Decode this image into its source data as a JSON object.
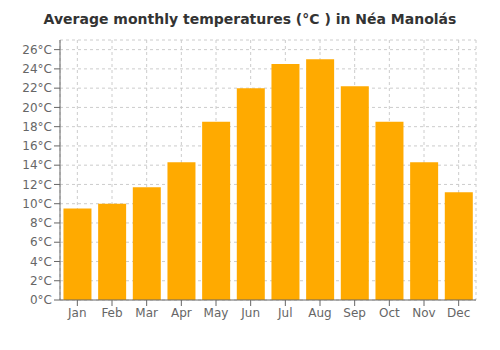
{
  "chart_data": {
    "type": "bar",
    "title": "Average monthly temperatures (°C ) in Néa Manolás",
    "categories": [
      "Jan",
      "Feb",
      "Mar",
      "Apr",
      "May",
      "Jun",
      "Jul",
      "Aug",
      "Sep",
      "Oct",
      "Nov",
      "Dec"
    ],
    "values": [
      9.5,
      10.0,
      11.7,
      14.3,
      18.5,
      22.0,
      24.5,
      25.0,
      22.2,
      18.5,
      14.3,
      11.2
    ],
    "color": "#FFAA00",
    "ylim": [
      0,
      27
    ],
    "yticks": [
      {
        "value": 0,
        "label": "0°C"
      },
      {
        "value": 2,
        "label": "2°C"
      },
      {
        "value": 4,
        "label": "4°C"
      },
      {
        "value": 6,
        "label": "6°C"
      },
      {
        "value": 8,
        "label": "8°C"
      },
      {
        "value": 10,
        "label": "10°C"
      },
      {
        "value": 12,
        "label": "12°C"
      },
      {
        "value": 14,
        "label": "14°C"
      },
      {
        "value": 16,
        "label": "16°C"
      },
      {
        "value": 18,
        "label": "18°C"
      },
      {
        "value": 20,
        "label": "20°C"
      },
      {
        "value": 22,
        "label": "22°C"
      },
      {
        "value": 24,
        "label": "24°C"
      },
      {
        "value": 26,
        "label": "26°C"
      }
    ],
    "grid": true
  }
}
